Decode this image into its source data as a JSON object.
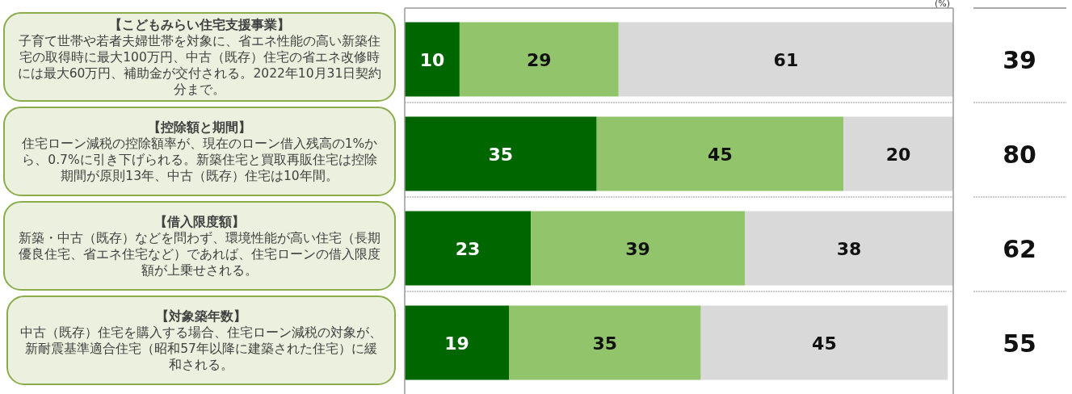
{
  "chart_data": {
    "type": "bar",
    "orientation": "horizontal",
    "stacked": true,
    "data_labels": true,
    "tick_labels": false,
    "xlim": [
      0,
      100
    ],
    "categories": [
      "**【こどもみらい住宅支援事業】**子育て世帯や若者夫婦世帯を対象に、省エネ性能の高い新築住宅の取得時に最大100万円、中古（既存）住宅の省エネ改修時には最大60万円、補助金が交付される。2022年10月31日契約分まで。",
      "**【控除額と期間】**住宅ローン減税の控除額率が、現在のローン借入残高の1%から、0.7%に引き下げられる。新築住宅と買取再販住宅は控除期間が原則13年、中古（既存）住宅は10年間。",
      "**【借入限度額】**新築・中古（既存）などを問わず、環境性能が高い住宅（長期優良住宅、省エネ住宅など）であれば、住宅ローンの借入限度額が上乗せされる。",
      "**【対象築年数】**中古（既存）住宅を購入する場合、住宅ローン減税の対象が、新耐震基準適合住宅（昭和57年以降に建築された住宅）に緩和される。"
    ],
    "series": [
      {
        "color": "#006600",
        "values": [
          10,
          35,
          23,
          19
        ]
      },
      {
        "color": "#92c46c",
        "values": [
          29,
          45,
          39,
          35
        ]
      },
      {
        "color": "#d9d9d9",
        "values": [
          61,
          20,
          38,
          45
        ]
      }
    ],
    "annotations": [
      "(%)",
      "39",
      "80",
      "62",
      "55"
    ]
  }
}
